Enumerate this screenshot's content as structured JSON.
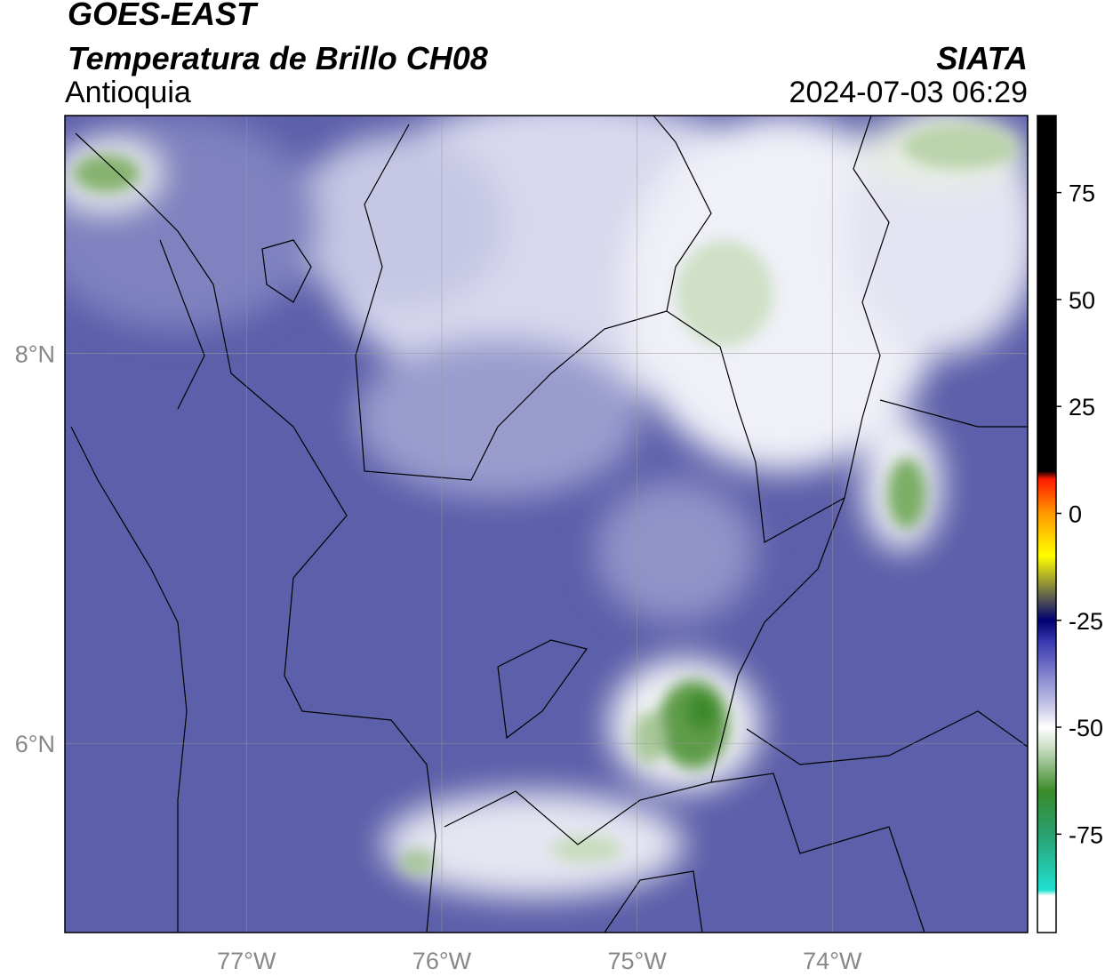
{
  "header": {
    "satellite": "GOES-EAST",
    "product": "Temperatura de Brillo CH08",
    "region": "Antioquia",
    "source": "SIATA",
    "datetime": "2024-07-03 06:29"
  },
  "map": {
    "lon_extent": [
      -77.93,
      -73.0
    ],
    "lat_extent": [
      5.03,
      9.22
    ],
    "lon_ticks": [
      {
        "value": -77,
        "label": "77°W"
      },
      {
        "value": -76,
        "label": "76°W"
      },
      {
        "value": -75,
        "label": "75°W"
      },
      {
        "value": -74,
        "label": "74°W"
      }
    ],
    "lat_ticks": [
      {
        "value": 8,
        "label": "8°N"
      },
      {
        "value": 6,
        "label": "6°N"
      }
    ],
    "grid": true
  },
  "colorbar": {
    "lim": [
      -98,
      93
    ],
    "ticks": [
      75,
      50,
      25,
      0,
      -25,
      -50,
      -75
    ]
  }
}
